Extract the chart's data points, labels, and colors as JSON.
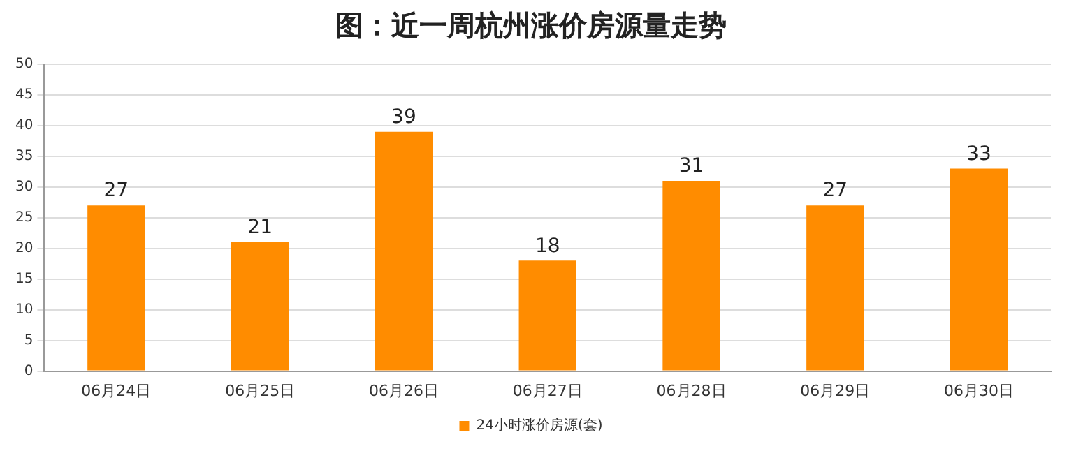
{
  "chart_data": {
    "type": "bar",
    "title": "图：近一周杭州涨价房源量走势",
    "categories": [
      "06月24日",
      "06月25日",
      "06月26日",
      "06月27日",
      "06月28日",
      "06月29日",
      "06月30日"
    ],
    "series": [
      {
        "name": "24小时涨价房源(套)",
        "color": "#ff8c00",
        "values": [
          27,
          21,
          39,
          18,
          31,
          27,
          33
        ]
      }
    ],
    "ylim": [
      0,
      50
    ],
    "yticks": [
      0,
      5,
      10,
      15,
      20,
      25,
      30,
      35,
      40,
      45,
      50
    ],
    "grid": "y",
    "legend": "bottom",
    "data_labels": true
  }
}
